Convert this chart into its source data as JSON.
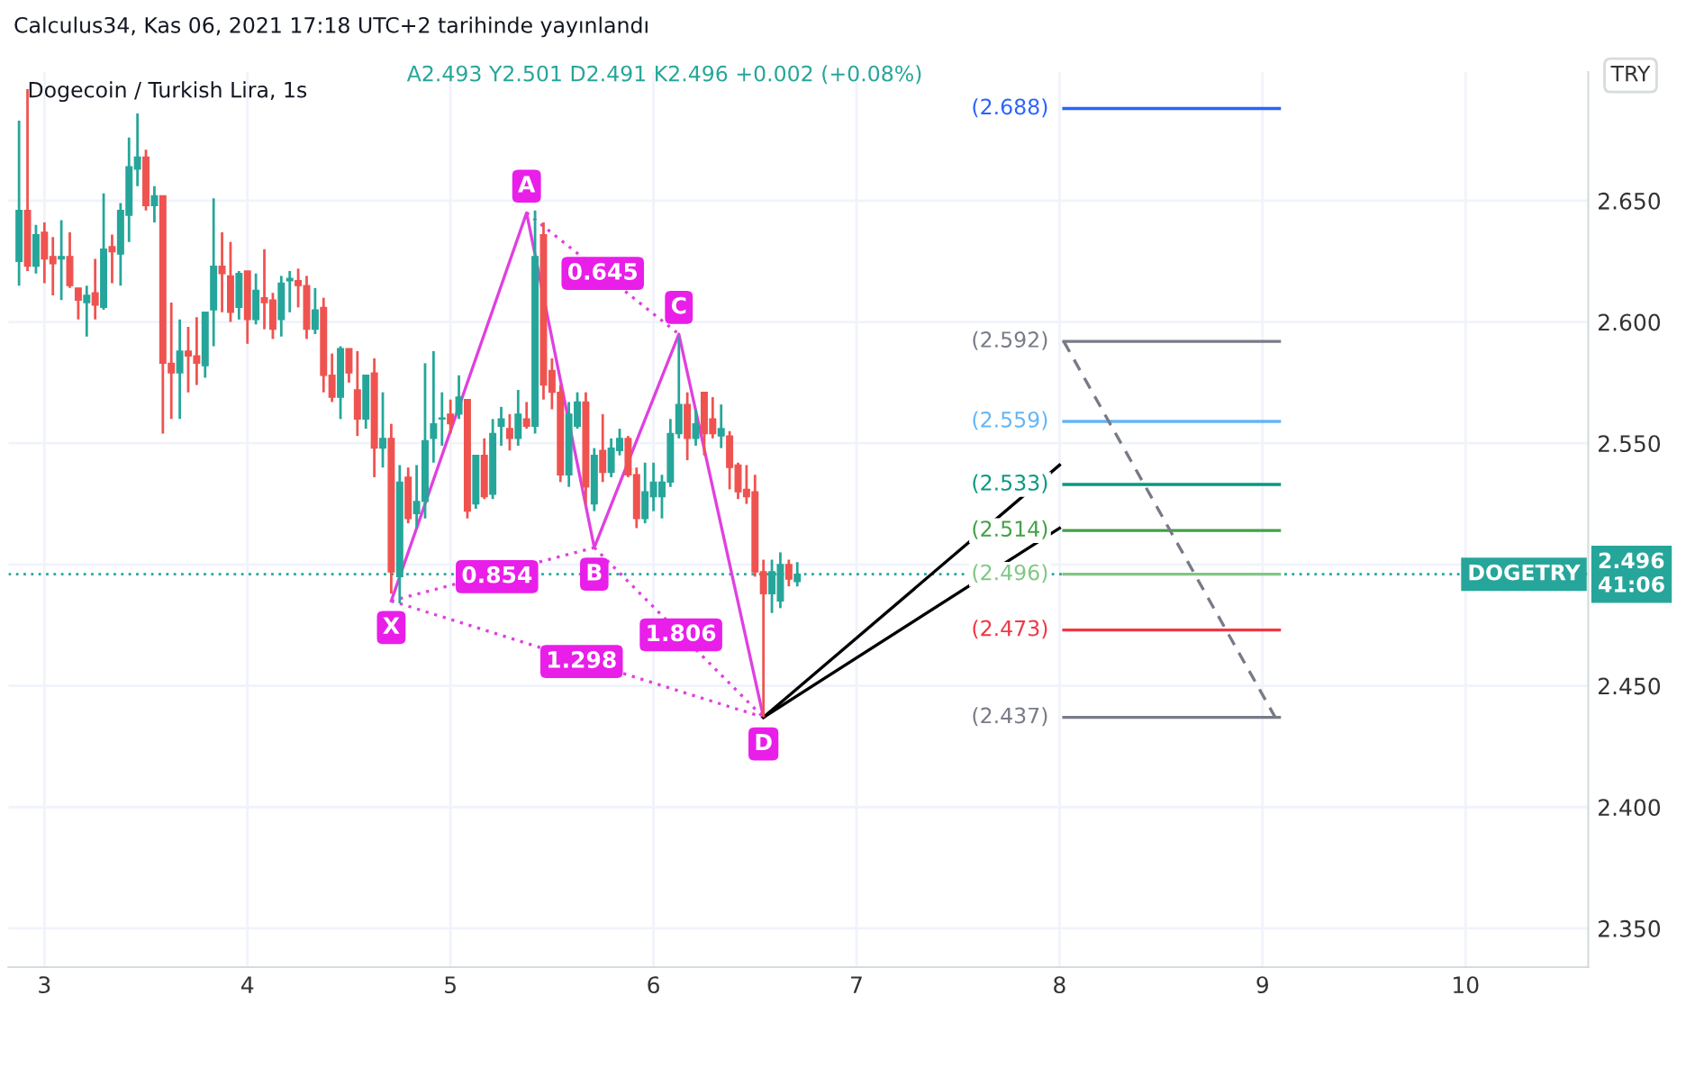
{
  "chart_data": {
    "type": "candlestick",
    "title": "Dogecoin / Turkish Lira, 1s",
    "subtitle": "A2.493 Y2.501 D2.491 K2.496 +0.002 (+0.08%)",
    "annotations": [
      "Calculus34, Kas 06, 2021 17:18 UTC+2 tarihinde yayınlandı",
      "TRY",
      "2.496",
      "41:06",
      {
        "text": "X",
        "x": "2021-11-04T17:00",
        "y": 2.474
      },
      {
        "text": "A",
        "x": "2021-11-05T09:00",
        "y": 2.656
      },
      {
        "text": "B",
        "x": "2021-11-05T17:00",
        "y": 2.496
      },
      {
        "text": "C",
        "x": "2021-11-06T03:00",
        "y": 2.606
      },
      {
        "text": "D",
        "x": "2021-11-06T13:00",
        "y": 2.426
      },
      {
        "text": "0.645",
        "x": "2021-11-05T18:00",
        "y": 2.62
      },
      {
        "text": "0.854",
        "x": "2021-11-05T05:30",
        "y": 2.495
      },
      {
        "text": "1.806",
        "x": "2021-11-06T03:15",
        "y": 2.471
      },
      {
        "text": "1.298",
        "x": "2021-11-05T15:30",
        "y": 2.46
      }
    ],
    "colors": [
      "#26a69a",
      "#ef5350"
    ],
    "series": [
      {
        "x": [
          "2021-11-02T21:00",
          "2021-11-02T22:00",
          "2021-11-02T23:00",
          "2021-11-03T00:00",
          "2021-11-03T01:00",
          "2021-11-03T02:00",
          "2021-11-03T03:00",
          "2021-11-03T04:00",
          "2021-11-03T05:00",
          "2021-11-03T06:00",
          "2021-11-03T07:00",
          "2021-11-03T08:00",
          "2021-11-03T09:00",
          "2021-11-03T10:00",
          "2021-11-03T11:00",
          "2021-11-03T12:00",
          "2021-11-03T13:00",
          "2021-11-03T14:00",
          "2021-11-03T15:00",
          "2021-11-03T16:00",
          "2021-11-03T17:00",
          "2021-11-03T18:00",
          "2021-11-03T19:00",
          "2021-11-03T20:00",
          "2021-11-03T21:00",
          "2021-11-03T22:00",
          "2021-11-03T23:00",
          "2021-11-04T00:00",
          "2021-11-04T01:00",
          "2021-11-04T02:00",
          "2021-11-04T03:00",
          "2021-11-04T04:00",
          "2021-11-04T05:00",
          "2021-11-04T06:00",
          "2021-11-04T07:00",
          "2021-11-04T08:00",
          "2021-11-04T09:00",
          "2021-11-04T10:00",
          "2021-11-04T11:00",
          "2021-11-04T12:00",
          "2021-11-04T13:00",
          "2021-11-04T14:00",
          "2021-11-04T15:00",
          "2021-11-04T16:00",
          "2021-11-04T17:00",
          "2021-11-04T18:00",
          "2021-11-04T19:00",
          "2021-11-04T20:00",
          "2021-11-04T21:00",
          "2021-11-04T22:00",
          "2021-11-04T23:00",
          "2021-11-05T00:00",
          "2021-11-05T01:00",
          "2021-11-05T02:00",
          "2021-11-05T03:00",
          "2021-11-05T04:00",
          "2021-11-05T05:00",
          "2021-11-05T06:00",
          "2021-11-05T07:00",
          "2021-11-05T08:00",
          "2021-11-05T09:00",
          "2021-11-05T10:00",
          "2021-11-05T11:00",
          "2021-11-05T12:00",
          "2021-11-05T13:00",
          "2021-11-05T14:00",
          "2021-11-05T15:00",
          "2021-11-05T16:00",
          "2021-11-05T17:00",
          "2021-11-05T18:00",
          "2021-11-05T19:00",
          "2021-11-05T20:00",
          "2021-11-05T21:00",
          "2021-11-05T22:00",
          "2021-11-05T23:00",
          "2021-11-06T00:00",
          "2021-11-06T01:00",
          "2021-11-06T02:00",
          "2021-11-06T03:00",
          "2021-11-06T04:00",
          "2021-11-06T05:00",
          "2021-11-06T06:00",
          "2021-11-06T07:00",
          "2021-11-06T08:00",
          "2021-11-06T09:00",
          "2021-11-06T10:00",
          "2021-11-06T11:00",
          "2021-11-06T12:00",
          "2021-11-06T13:00",
          "2021-11-06T14:00",
          "2021-11-06T15:00",
          "2021-11-06T16:00",
          "2021-11-06T17:00"
        ],
        "ohlc": [
          [
            2.625,
            2.683,
            2.615,
            2.646
          ],
          [
            2.646,
            2.696,
            2.621,
            2.623
          ],
          [
            2.623,
            2.64,
            2.62,
            2.636
          ],
          [
            2.637,
            2.641,
            2.616,
            2.626
          ],
          [
            2.627,
            2.635,
            2.611,
            2.624
          ],
          [
            2.626,
            2.642,
            2.609,
            2.627
          ],
          [
            2.627,
            2.637,
            2.614,
            2.615
          ],
          [
            2.614,
            2.614,
            2.601,
            2.609
          ],
          [
            2.608,
            2.615,
            2.594,
            2.611
          ],
          [
            2.612,
            2.626,
            2.601,
            2.607
          ],
          [
            2.606,
            2.653,
            2.605,
            2.63
          ],
          [
            2.631,
            2.636,
            2.616,
            2.629
          ],
          [
            2.628,
            2.649,
            2.615,
            2.646
          ],
          [
            2.644,
            2.676,
            2.633,
            2.664
          ],
          [
            2.663,
            2.686,
            2.656,
            2.668
          ],
          [
            2.668,
            2.671,
            2.646,
            2.648
          ],
          [
            2.648,
            2.656,
            2.641,
            2.652
          ],
          [
            2.652,
            2.652,
            2.554,
            2.583
          ],
          [
            2.583,
            2.608,
            2.56,
            2.579
          ],
          [
            2.579,
            2.601,
            2.56,
            2.588
          ],
          [
            2.588,
            2.598,
            2.571,
            2.586
          ],
          [
            2.586,
            2.602,
            2.574,
            2.583
          ],
          [
            2.582,
            2.604,
            2.577,
            2.604
          ],
          [
            2.605,
            2.651,
            2.59,
            2.623
          ],
          [
            2.623,
            2.637,
            2.604,
            2.62
          ],
          [
            2.619,
            2.633,
            2.6,
            2.604
          ],
          [
            2.606,
            2.621,
            2.601,
            2.62
          ],
          [
            2.621,
            2.621,
            2.591,
            2.601
          ],
          [
            2.601,
            2.62,
            2.599,
            2.613
          ],
          [
            2.61,
            2.63,
            2.597,
            2.608
          ],
          [
            2.609,
            2.612,
            2.593,
            2.597
          ],
          [
            2.601,
            2.619,
            2.594,
            2.616
          ],
          [
            2.617,
            2.621,
            2.604,
            2.618
          ],
          [
            2.617,
            2.622,
            2.606,
            2.615
          ],
          [
            2.615,
            2.619,
            2.593,
            2.597
          ],
          [
            2.597,
            2.614,
            2.595,
            2.605
          ],
          [
            2.606,
            2.61,
            2.571,
            2.578
          ],
          [
            2.578,
            2.587,
            2.567,
            2.569
          ],
          [
            2.569,
            2.59,
            2.56,
            2.589
          ],
          [
            2.589,
            2.589,
            2.575,
            2.579
          ],
          [
            2.572,
            2.588,
            2.553,
            2.56
          ],
          [
            2.56,
            2.578,
            2.556,
            2.578
          ],
          [
            2.579,
            2.585,
            2.536,
            2.548
          ],
          [
            2.548,
            2.571,
            2.54,
            2.552
          ],
          [
            2.552,
            2.558,
            2.488,
            2.497
          ],
          [
            2.495,
            2.541,
            2.484,
            2.534
          ],
          [
            2.536,
            2.54,
            2.517,
            2.519
          ],
          [
            2.521,
            2.541,
            2.515,
            2.526
          ],
          [
            2.526,
            2.583,
            2.519,
            2.551
          ],
          [
            2.552,
            2.588,
            2.542,
            2.558
          ],
          [
            2.56,
            2.571,
            2.549,
            2.56
          ],
          [
            2.562,
            2.568,
            2.554,
            2.558
          ],
          [
            2.562,
            2.578,
            2.56,
            2.569
          ],
          [
            2.568,
            2.568,
            2.519,
            2.522
          ],
          [
            2.525,
            2.545,
            2.523,
            2.545
          ],
          [
            2.545,
            2.552,
            2.527,
            2.528
          ],
          [
            2.529,
            2.56,
            2.527,
            2.554
          ],
          [
            2.557,
            2.565,
            2.549,
            2.56
          ],
          [
            2.556,
            2.562,
            2.547,
            2.552
          ],
          [
            2.552,
            2.572,
            2.549,
            2.562
          ],
          [
            2.56,
            2.567,
            2.556,
            2.557
          ],
          [
            2.557,
            2.646,
            2.554,
            2.627
          ],
          [
            2.636,
            2.641,
            2.568,
            2.574
          ],
          [
            2.58,
            2.585,
            2.564,
            2.571
          ],
          [
            2.571,
            2.574,
            2.534,
            2.537
          ],
          [
            2.537,
            2.567,
            2.532,
            2.562
          ],
          [
            2.557,
            2.571,
            2.556,
            2.567
          ],
          [
            2.567,
            2.571,
            2.525,
            2.532
          ],
          [
            2.525,
            2.548,
            2.522,
            2.545
          ],
          [
            2.547,
            2.562,
            2.534,
            2.538
          ],
          [
            2.538,
            2.552,
            2.536,
            2.548
          ],
          [
            2.547,
            2.556,
            2.545,
            2.552
          ],
          [
            2.552,
            2.553,
            2.536,
            2.537
          ],
          [
            2.537,
            2.54,
            2.515,
            2.519
          ],
          [
            2.519,
            2.542,
            2.517,
            2.53
          ],
          [
            2.528,
            2.542,
            2.522,
            2.534
          ],
          [
            2.528,
            2.537,
            2.519,
            2.534
          ],
          [
            2.534,
            2.56,
            2.532,
            2.554
          ],
          [
            2.554,
            2.594,
            2.552,
            2.566
          ],
          [
            2.566,
            2.571,
            2.543,
            2.552
          ],
          [
            2.552,
            2.564,
            2.549,
            2.558
          ],
          [
            2.571,
            2.571,
            2.545,
            2.554
          ],
          [
            2.56,
            2.569,
            2.552,
            2.554
          ],
          [
            2.553,
            2.566,
            2.548,
            2.556
          ],
          [
            2.553,
            2.555,
            2.531,
            2.54
          ],
          [
            2.541,
            2.542,
            2.527,
            2.53
          ],
          [
            2.531,
            2.541,
            2.525,
            2.528
          ],
          [
            2.53,
            2.537,
            2.495,
            2.497
          ],
          [
            2.497,
            2.502,
            2.437,
            2.488
          ],
          [
            2.488,
            2.502,
            2.48,
            2.497
          ],
          [
            2.485,
            2.505,
            2.482,
            2.5
          ],
          [
            2.5,
            2.502,
            2.491,
            2.494
          ],
          [
            2.493,
            2.501,
            2.491,
            2.496
          ]
        ]
      },
      {
        "type": "line",
        "color": "#e040e0",
        "line_style": "solid",
        "x": [
          "2021-11-04T17:00",
          "2021-11-05T09:00",
          "2021-11-05T17:00",
          "2021-11-06T03:00",
          "2021-11-06T13:00"
        ],
        "values": [
          2.485,
          2.645,
          2.507,
          2.595,
          2.437
        ]
      },
      {
        "type": "line",
        "color": "#e040e0",
        "line_style": "dotted",
        "x": [
          "2021-11-04T17:00",
          "2021-11-05T17:00"
        ],
        "values": [
          2.485,
          2.507
        ]
      },
      {
        "type": "line",
        "color": "#e040e0",
        "line_style": "dotted",
        "x": [
          "2021-11-05T09:00",
          "2021-11-06T03:00"
        ],
        "values": [
          2.645,
          2.595
        ]
      },
      {
        "type": "line",
        "color": "#e040e0",
        "line_style": "dotted",
        "x": [
          "2021-11-05T17:00",
          "2021-11-06T13:00"
        ],
        "values": [
          2.507,
          2.437
        ]
      },
      {
        "type": "line",
        "color": "#e040e0",
        "line_style": "dotted",
        "x": [
          "2021-11-04T17:00",
          "2021-11-06T13:00"
        ],
        "values": [
          2.485,
          2.437
        ]
      },
      {
        "type": "line",
        "color": "#000000",
        "line_style": "solid",
        "x": [
          "2021-11-06T13:00",
          "2021-11-08T00:00"
        ],
        "values": [
          2.437,
          2.541
        ]
      },
      {
        "type": "line",
        "color": "#000000",
        "line_style": "solid",
        "x": [
          "2021-11-06T13:00",
          "2021-11-08T00:00"
        ],
        "values": [
          2.437,
          2.515
        ]
      },
      {
        "type": "line",
        "name": "(2.688)",
        "color": "#2962ff",
        "line_style": "solid",
        "x": [
          "2021-11-08T00:30",
          "2021-11-09T02:00"
        ],
        "values": [
          2.688,
          2.688
        ]
      },
      {
        "type": "line",
        "name": "(2.592)",
        "color": "#787b86",
        "line_style": "solid",
        "x": [
          "2021-11-08T00:30",
          "2021-11-09T02:00"
        ],
        "values": [
          2.592,
          2.592
        ]
      },
      {
        "type": "line",
        "name": "(2.559)",
        "color": "#64b5f6",
        "line_style": "solid",
        "x": [
          "2021-11-08T00:30",
          "2021-11-09T02:00"
        ],
        "values": [
          2.559,
          2.559
        ]
      },
      {
        "type": "line",
        "name": "(2.533)",
        "color": "#089981",
        "line_style": "solid",
        "x": [
          "2021-11-08T00:30",
          "2021-11-09T02:00"
        ],
        "values": [
          2.533,
          2.533
        ]
      },
      {
        "type": "line",
        "name": "(2.514)",
        "color": "#43a047",
        "line_style": "solid",
        "x": [
          "2021-11-08T00:30",
          "2021-11-09T02:00"
        ],
        "values": [
          2.514,
          2.514
        ]
      },
      {
        "type": "line",
        "name": "(2.496)",
        "color": "#81c784",
        "line_style": "solid",
        "x": [
          "2021-11-08T00:30",
          "2021-11-09T02:00"
        ],
        "values": [
          2.496,
          2.496
        ]
      },
      {
        "type": "line",
        "name": "(2.473)",
        "color": "#f23645",
        "line_style": "solid",
        "x": [
          "2021-11-08T00:30",
          "2021-11-09T02:00"
        ],
        "values": [
          2.473,
          2.473
        ]
      },
      {
        "type": "line",
        "name": "(2.437)",
        "color": "#787b86",
        "line_style": "solid",
        "x": [
          "2021-11-08T00:30",
          "2021-11-09T02:00"
        ],
        "values": [
          2.437,
          2.437
        ]
      },
      {
        "type": "line",
        "color": "#787b86",
        "line_style": "dashed",
        "x": [
          "2021-11-08T00:30",
          "2021-11-09T01:30"
        ],
        "values": [
          2.592,
          2.437
        ]
      }
    ],
    "ref_lines": [
      {
        "axis": "y",
        "value": 2.496,
        "label": "DOGETRY",
        "color": "#26a69a",
        "line_style": "dotted"
      }
    ],
    "xlim": [
      "2021-11-02T19:45",
      "2021-11-10T14:30"
    ],
    "xticks": [
      {
        "value": "2021-11-03",
        "label": "3"
      },
      {
        "value": "2021-11-04",
        "label": "4"
      },
      {
        "value": "2021-11-05",
        "label": "5"
      },
      {
        "value": "2021-11-06",
        "label": "6"
      },
      {
        "value": "2021-11-07",
        "label": "7"
      },
      {
        "value": "2021-11-08",
        "label": "8"
      },
      {
        "value": "2021-11-09",
        "label": "9"
      },
      {
        "value": "2021-11-10",
        "label": "10"
      }
    ],
    "ylim": [
      2.334,
      2.703
    ],
    "yticks": [
      {
        "value": 2.35,
        "label": "2.350"
      },
      {
        "value": 2.4,
        "label": "2.400"
      },
      {
        "value": 2.45,
        "label": "2.450"
      },
      {
        "value": 2.5,
        "label": null
      },
      {
        "value": 2.55,
        "label": "2.550"
      },
      {
        "value": 2.6,
        "label": "2.600"
      },
      {
        "value": 2.65,
        "label": "2.650"
      }
    ],
    "grid": true
  }
}
